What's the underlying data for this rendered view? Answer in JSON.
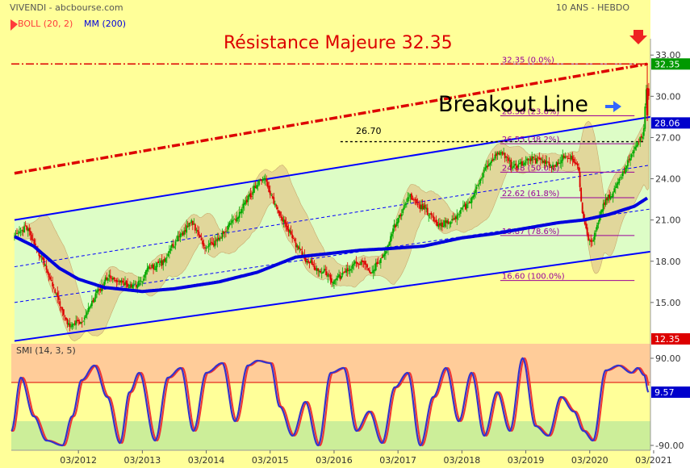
{
  "header": {
    "source": "VIVENDI - abcbourse.com",
    "period": "10 ANS - HEBDO",
    "legend": [
      {
        "label": "BOLL (20, 2)",
        "color": "#ff3b3b"
      },
      {
        "label": "MM (200)",
        "color": "#0000dd"
      }
    ]
  },
  "annotations": {
    "resistance": "Résistance Majeure 32.35",
    "breakout": "Breakout Line",
    "level_26_70": "26.70"
  },
  "colors": {
    "background": "#ffff99",
    "channel_fill": "#ddfdc6",
    "bollinger_fill": "#e1c98c",
    "mm200": "#0000dd",
    "channel": "#0000ff",
    "resistance": "#dd0000",
    "fib": "#990099",
    "candle_up": "#00aa00",
    "candle_down": "#dd0000",
    "smi_line": "#3333cc",
    "smi_signal": "#ee3333"
  },
  "chart_data": [
    {
      "type": "candlestick",
      "title": "VIVENDI - abcbourse.com",
      "ylim": [
        12.35,
        33.6
      ],
      "yticks": [
        33.0,
        30.0,
        27.0,
        24.0,
        21.0,
        18.0,
        15.0
      ],
      "ytick_labels": [
        "33.00",
        "30.00",
        "27.00",
        "24.00",
        "21.00",
        "18.00",
        "15.00"
      ],
      "x_labels": [
        "03/2012",
        "03/2013",
        "03/2014",
        "03/2015",
        "03/2016",
        "03/2017",
        "03/2018",
        "03/2019",
        "03/2020",
        "03/2021"
      ],
      "x_range": [
        "2011-03",
        "2021-03"
      ],
      "price_anchors": {
        "x": [
          2011.2,
          2011.4,
          2011.7,
          2011.9,
          2012.05,
          2012.3,
          2012.5,
          2012.7,
          2013.1,
          2013.3,
          2013.5,
          2013.75,
          2014.0,
          2014.2,
          2014.4,
          2014.7,
          2014.95,
          2015.1,
          2015.3,
          2015.5,
          2015.7,
          2015.9,
          2016.2,
          2016.4,
          2016.6,
          2016.8,
          2017.0,
          2017.2,
          2017.4,
          2017.6,
          2017.8,
          2018.0,
          2018.2,
          2018.4,
          2018.6,
          2018.8,
          2019.0,
          2019.15,
          2019.4,
          2019.6,
          2019.8,
          2020.0,
          2020.1,
          2020.22,
          2020.4,
          2020.6,
          2020.8,
          2020.95,
          2021.05,
          2021.08,
          2021.12
        ],
        "close": [
          19.9,
          20.5,
          17.5,
          15.0,
          13.3,
          13.8,
          15.9,
          16.8,
          16.1,
          17.6,
          17.9,
          19.8,
          20.8,
          19.0,
          19.5,
          21.3,
          23.3,
          24.3,
          21.8,
          20.3,
          18.4,
          17.6,
          16.6,
          17.3,
          18.0,
          17.2,
          18.6,
          21.2,
          22.9,
          21.9,
          20.6,
          20.9,
          21.7,
          23.1,
          25.0,
          26.1,
          24.9,
          25.2,
          25.4,
          24.9,
          25.6,
          25.4,
          21.2,
          19.2,
          21.9,
          23.3,
          25.3,
          26.6,
          27.2,
          31.2,
          29.9
        ]
      },
      "mm200_anchors": {
        "x": [
          2011.2,
          2011.5,
          2011.9,
          2012.2,
          2012.6,
          2013.2,
          2013.7,
          2014.4,
          2015.0,
          2015.6,
          2016.2,
          2016.6,
          2017.0,
          2017.6,
          2018.2,
          2018.7,
          2019.2,
          2019.7,
          2020.1,
          2020.5,
          2020.9,
          2021.1
        ],
        "value": [
          19.8,
          19.1,
          17.5,
          16.7,
          16.1,
          15.8,
          16.0,
          16.5,
          17.2,
          18.3,
          18.6,
          18.8,
          18.9,
          19.1,
          19.7,
          20.0,
          20.4,
          20.8,
          21.0,
          21.4,
          22.0,
          22.6
        ]
      },
      "bollinger": {
        "period": 20,
        "stdev": 2
      },
      "channel": {
        "upper": {
          "x": [
            2011.2,
            2021.15
          ],
          "y": [
            21.0,
            28.5
          ]
        },
        "lower": {
          "x": [
            2011.2,
            2021.15
          ],
          "y": [
            12.2,
            18.7
          ]
        },
        "inner": [
          {
            "x": [
              2011.2,
              2021.15
            ],
            "y": [
              17.6,
              25.0
            ]
          },
          {
            "x": [
              2011.2,
              2021.15
            ],
            "y": [
              15.0,
              21.8
            ]
          }
        ]
      },
      "resistance_line": {
        "y": 32.35,
        "label": "Résistance Majeure 32.35"
      },
      "trend_resistance": {
        "x": [
          2011.2,
          2021.1
        ],
        "y": [
          24.4,
          32.35
        ]
      },
      "breakout_line": {
        "label": "Breakout Line",
        "level": 28.5
      },
      "level_line": {
        "y": 26.7,
        "label": "26.70",
        "from": 2016.3
      },
      "fibonacci": {
        "from": 2018.8,
        "to": 2020.9,
        "levels": [
          {
            "value": 32.35,
            "label": "32.35  (0.0%)"
          },
          {
            "value": 28.58,
            "label": "28.58  (23.6%)"
          },
          {
            "value": 26.55,
            "label": "26.55  (38.2%)"
          },
          {
            "value": 24.48,
            "label": "24.48  (50.0%)"
          },
          {
            "value": 22.62,
            "label": "22.62  (61.8%)"
          },
          {
            "value": 19.87,
            "label": "19.87  (78.6%)"
          },
          {
            "value": 16.6,
            "label": "16.60  (100.0%)"
          }
        ]
      },
      "price_tags": [
        {
          "value": 32.35,
          "label": "32.35",
          "color": "#009900"
        },
        {
          "value": 28.06,
          "label": "28.06",
          "color": "#0000cc"
        },
        {
          "value": 12.35,
          "label": "12.35",
          "color": "#dd0000"
        }
      ]
    },
    {
      "type": "line",
      "title": "SMI (14, 3, 5)",
      "ylim": [
        -100,
        120
      ],
      "yticks": [
        90.0,
        -90.0
      ],
      "ytick_labels": [
        "90.00",
        "-90.00"
      ],
      "zones": [
        {
          "from": 40,
          "to": 120,
          "color": "#ffcc99"
        },
        {
          "from": -100,
          "to": -40,
          "color": "#ccee99"
        }
      ],
      "signal_level": 40,
      "anchors": {
        "x": [
          2011.15,
          2011.3,
          2011.5,
          2011.7,
          2011.95,
          2012.1,
          2012.25,
          2012.45,
          2012.65,
          2012.85,
          2013.0,
          2013.15,
          2013.4,
          2013.6,
          2013.8,
          2014.0,
          2014.2,
          2014.45,
          2014.65,
          2014.85,
          2015.0,
          2015.2,
          2015.35,
          2015.55,
          2015.75,
          2015.95,
          2016.15,
          2016.35,
          2016.55,
          2016.75,
          2016.95,
          2017.15,
          2017.35,
          2017.55,
          2017.75,
          2017.95,
          2018.15,
          2018.35,
          2018.55,
          2018.75,
          2018.95,
          2019.15,
          2019.35,
          2019.55,
          2019.75,
          2019.95,
          2020.1,
          2020.25,
          2020.45,
          2020.65,
          2020.85,
          2020.95,
          2021.05,
          2021.12
        ],
        "value": [
          -60,
          50,
          -30,
          -80,
          -90,
          -30,
          45,
          75,
          10,
          -85,
          20,
          60,
          -80,
          50,
          70,
          -60,
          60,
          80,
          -40,
          75,
          85,
          80,
          -10,
          -70,
          0,
          -90,
          60,
          70,
          -60,
          -20,
          -85,
          30,
          60,
          -90,
          10,
          70,
          -40,
          60,
          -70,
          20,
          -60,
          90,
          -50,
          -70,
          10,
          -20,
          -60,
          -80,
          65,
          75,
          60,
          70,
          55,
          20
        ]
      }
    }
  ],
  "footer": {
    "smi_value": "9.57"
  }
}
